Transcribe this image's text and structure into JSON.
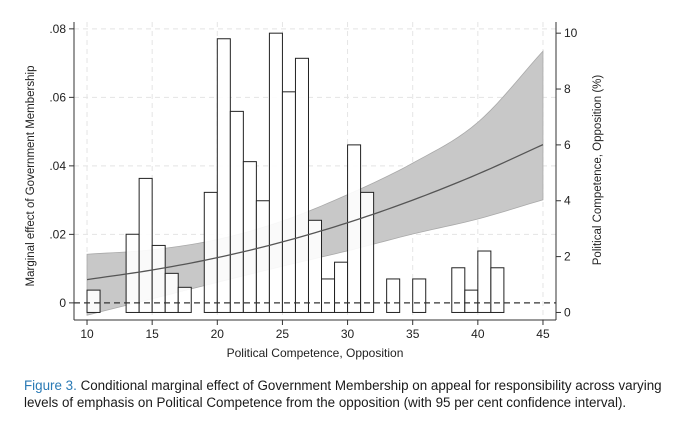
{
  "chart_data": {
    "type": "bar",
    "xlabel": "Political Competence, Opposition",
    "ylabel_left": "Marginal effect of Government Membership",
    "ylabel_right": "Political Competence, Opposition (%)",
    "xlim": [
      9,
      46
    ],
    "ylim_left": [
      -0.005,
      0.082
    ],
    "ylim_right": [
      -0.27,
      10.4
    ],
    "x_ticks": [
      10,
      15,
      20,
      25,
      30,
      35,
      40,
      45
    ],
    "y_left_ticks": [
      {
        "value": 0,
        "label": "0"
      },
      {
        "value": 0.02,
        "label": ".02"
      },
      {
        "value": 0.04,
        "label": ".04"
      },
      {
        "value": 0.06,
        "label": ".06"
      },
      {
        "value": 0.08,
        "label": ".08"
      }
    ],
    "y_right_ticks": [
      0,
      2,
      4,
      6,
      8,
      10
    ],
    "histogram": {
      "name": "Political Competence, Opposition (%)",
      "bin_width": 1,
      "bins": [
        {
          "x": 10.5,
          "value": 0.8
        },
        {
          "x": 13.5,
          "value": 2.8
        },
        {
          "x": 14.5,
          "value": 4.8
        },
        {
          "x": 15.5,
          "value": 2.4
        },
        {
          "x": 16.5,
          "value": 1.4
        },
        {
          "x": 17.5,
          "value": 0.9
        },
        {
          "x": 19.5,
          "value": 4.3
        },
        {
          "x": 20.5,
          "value": 9.8
        },
        {
          "x": 21.5,
          "value": 7.2
        },
        {
          "x": 22.5,
          "value": 5.4
        },
        {
          "x": 23.5,
          "value": 4.0
        },
        {
          "x": 24.5,
          "value": 10.0
        },
        {
          "x": 25.5,
          "value": 7.9
        },
        {
          "x": 26.5,
          "value": 9.1
        },
        {
          "x": 27.5,
          "value": 3.3
        },
        {
          "x": 28.5,
          "value": 1.2
        },
        {
          "x": 29.5,
          "value": 1.8
        },
        {
          "x": 30.5,
          "value": 6.0
        },
        {
          "x": 31.5,
          "value": 4.3
        },
        {
          "x": 33.5,
          "value": 1.2
        },
        {
          "x": 35.5,
          "value": 1.2
        },
        {
          "x": 38.5,
          "value": 1.6
        },
        {
          "x": 39.5,
          "value": 0.8
        },
        {
          "x": 40.5,
          "value": 2.2
        },
        {
          "x": 41.5,
          "value": 1.6
        }
      ]
    },
    "marginal_effect": {
      "x": [
        10,
        15,
        20,
        25,
        30,
        35,
        40,
        45
      ],
      "estimate": [
        0.0068,
        0.0096,
        0.0132,
        0.0178,
        0.0234,
        0.03,
        0.0376,
        0.0462
      ],
      "ci_lower": [
        -0.0036,
        0.0012,
        0.006,
        0.0107,
        0.0152,
        0.0201,
        0.0245,
        0.0301
      ],
      "ci_upper": [
        0.0142,
        0.0155,
        0.0185,
        0.0239,
        0.0316,
        0.0408,
        0.0527,
        0.0735
      ]
    },
    "reference_line": {
      "y": 0,
      "style": "dashed"
    },
    "colors": {
      "band": "#c8c8c8",
      "band_edge": "#a9a9a9",
      "line": "#555555",
      "bars": "#ffffff",
      "bar_edge": "#222222"
    },
    "grid": true,
    "legend": "none"
  },
  "caption": {
    "label": "Figure 3.",
    "text": " Conditional marginal effect of Government Membership on appeal for responsibility across varying levels of emphasis on Political Competence from the opposition (with 95 per cent confidence interval)."
  }
}
